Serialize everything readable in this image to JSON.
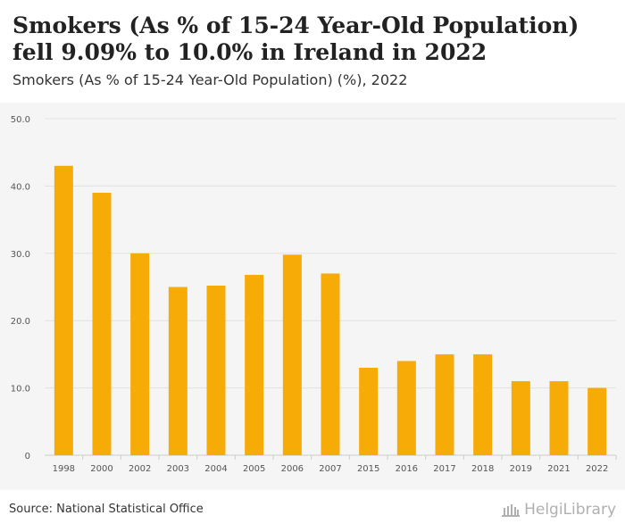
{
  "title": "Smokers (As % of 15-24 Year-Old Population) fell 9.09% to 10.0% in Ireland in 2022",
  "subtitle": "Smokers (As % of 15-24 Year-Old Population) (%), 2022",
  "source": "Source: National Statistical Office",
  "logo_text": "HelgiLibrary",
  "colors": {
    "bar": "#f7ab06",
    "grid": "#e2e2e2",
    "plot_bg": "#f5f5f5",
    "text": "#555555"
  },
  "chart_data": {
    "type": "bar",
    "title": "",
    "xlabel": "",
    "ylabel": "",
    "categories": [
      "1998",
      "2000",
      "2002",
      "2003",
      "2004",
      "2005",
      "2006",
      "2007",
      "2015",
      "2016",
      "2017",
      "2018",
      "2019",
      "2021",
      "2022"
    ],
    "values": [
      43.0,
      39.0,
      30.0,
      25.0,
      25.2,
      26.8,
      29.8,
      27.0,
      13.0,
      14.0,
      15.0,
      15.0,
      11.0,
      11.0,
      10.0
    ],
    "ylim": [
      0,
      50
    ],
    "yticks": [
      "0",
      "10.0",
      "20.0",
      "30.0",
      "40.0",
      "50.0"
    ],
    "grid": true,
    "legend": "none"
  }
}
